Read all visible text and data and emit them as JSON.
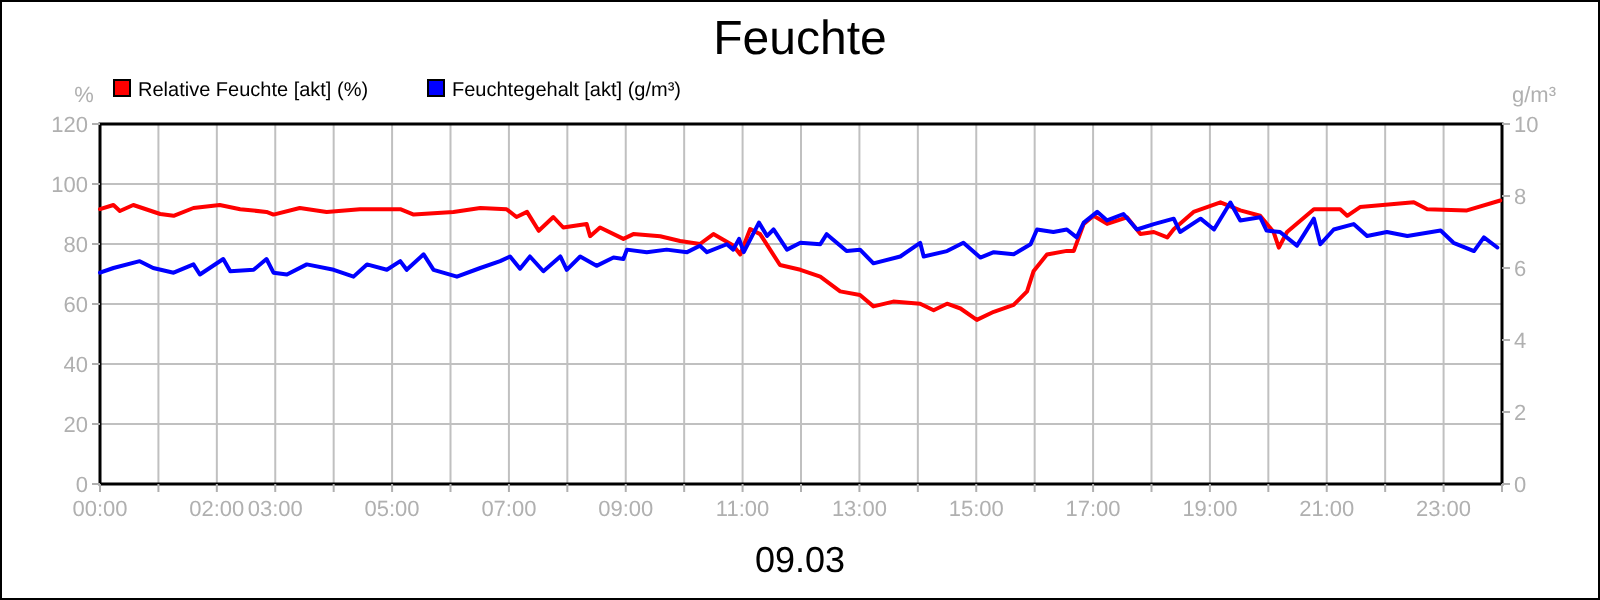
{
  "chart_data": {
    "type": "line",
    "title": "Feuchte",
    "xlabel": "09.03",
    "ylabel": "%",
    "y2label": "g/m³",
    "legend": "top left",
    "grid": true,
    "marker": "none",
    "line_style": "solid",
    "xlim": [
      0,
      24
    ],
    "ylim": [
      0,
      120
    ],
    "y2lim": [
      0,
      10
    ],
    "xticks": [
      {
        "value": 0,
        "label": "00:00"
      },
      {
        "value": 1,
        "label": null
      },
      {
        "value": 2,
        "label": "02:00"
      },
      {
        "value": 3,
        "label": "03:00"
      },
      {
        "value": 4,
        "label": null
      },
      {
        "value": 5,
        "label": "05:00"
      },
      {
        "value": 6,
        "label": null
      },
      {
        "value": 7,
        "label": "07:00"
      },
      {
        "value": 8,
        "label": null
      },
      {
        "value": 9,
        "label": "09:00"
      },
      {
        "value": 10,
        "label": null
      },
      {
        "value": 11,
        "label": "11:00"
      },
      {
        "value": 12,
        "label": null
      },
      {
        "value": 13,
        "label": "13:00"
      },
      {
        "value": 14,
        "label": null
      },
      {
        "value": 15,
        "label": "15:00"
      },
      {
        "value": 16,
        "label": null
      },
      {
        "value": 17,
        "label": "17:00"
      },
      {
        "value": 18,
        "label": null
      },
      {
        "value": 19,
        "label": "19:00"
      },
      {
        "value": 20,
        "label": null
      },
      {
        "value": 21,
        "label": "21:00"
      },
      {
        "value": 22,
        "label": null
      },
      {
        "value": 23,
        "label": "23:00"
      },
      {
        "value": 24,
        "label": null
      }
    ],
    "yticks": [
      0,
      20,
      40,
      60,
      80,
      100,
      120
    ],
    "y2ticks": [
      0,
      2,
      4,
      6,
      8,
      10
    ],
    "series": [
      {
        "name": "Relative Feuchte [akt] (%)",
        "color": "#ff0000",
        "x": [
          0,
          0.23,
          0.34,
          0.57,
          1.03,
          1.26,
          1.6,
          2.05,
          2.4,
          2.85,
          2.97,
          3.42,
          3.88,
          4.45,
          5.14,
          5.37,
          6.05,
          6.51,
          6.96,
          7.13,
          7.31,
          7.51,
          7.76,
          7.93,
          8.33,
          8.39,
          8.56,
          8.96,
          9.13,
          9.59,
          9.93,
          10.27,
          10.5,
          10.84,
          10.96,
          11.13,
          11.3,
          11.64,
          11.99,
          12.33,
          12.67,
          13.01,
          13.24,
          13.58,
          14.04,
          14.27,
          14.5,
          14.73,
          15.01,
          15.3,
          15.64,
          15.87,
          15.98,
          16.21,
          16.55,
          16.67,
          16.84,
          17.01,
          17.24,
          17.58,
          17.81,
          18.04,
          18.27,
          18.38,
          18.72,
          19.18,
          19.52,
          19.86,
          20.09,
          20.18,
          20.32,
          20.78,
          21.23,
          21.35,
          21.57,
          22.49,
          22.72,
          23.4,
          23.97
        ],
        "values": [
          91.6,
          93,
          91,
          93,
          90,
          89.4,
          92,
          93,
          91.6,
          90.7,
          89.8,
          92,
          90.7,
          91.6,
          91.6,
          89.8,
          90.7,
          92,
          91.6,
          89,
          90.7,
          84.4,
          89,
          85.5,
          86.7,
          82.6,
          85.5,
          81.7,
          83.3,
          82.6,
          81,
          80,
          83.3,
          79.5,
          76.5,
          85,
          83.3,
          73,
          71.4,
          69.1,
          64.2,
          63,
          59.2,
          60.8,
          60.1,
          57.9,
          60.1,
          58.5,
          54.7,
          57.4,
          59.7,
          64.2,
          70.9,
          76.5,
          77.7,
          77.7,
          86.7,
          89.4,
          86.7,
          88.9,
          83.3,
          84,
          82.2,
          84.9,
          90.7,
          93.9,
          91.2,
          89.4,
          84,
          78.8,
          84,
          91.6,
          91.6,
          89.4,
          92.3,
          93.9,
          91.6,
          91.2,
          94.5
        ]
      },
      {
        "name": "Feuchtegehalt [akt] (g/m³)",
        "color": "#0000ff",
        "axis": "y2",
        "x": [
          0,
          0.23,
          0.68,
          0.91,
          1.26,
          1.6,
          1.71,
          2.11,
          2.23,
          2.63,
          2.85,
          2.97,
          3.2,
          3.54,
          4.0,
          4.34,
          4.57,
          4.91,
          5.14,
          5.25,
          5.54,
          5.71,
          6.11,
          6.51,
          6.85,
          7.02,
          7.19,
          7.36,
          7.59,
          7.88,
          7.99,
          8.22,
          8.5,
          8.79,
          8.96,
          9.02,
          9.36,
          9.7,
          10.05,
          10.27,
          10.39,
          10.73,
          10.84,
          10.94,
          11.02,
          11.28,
          11.42,
          11.53,
          11.76,
          11.99,
          12.33,
          12.44,
          12.78,
          13.01,
          13.24,
          13.7,
          14.04,
          14.1,
          14.5,
          14.78,
          15.07,
          15.3,
          15.64,
          15.93,
          16.04,
          16.32,
          16.55,
          16.72,
          16.84,
          17.07,
          17.24,
          17.52,
          17.75,
          18.04,
          18.38,
          18.49,
          18.84,
          19.07,
          19.35,
          19.52,
          19.86,
          19.97,
          20.2,
          20.49,
          20.78,
          20.89,
          21.12,
          21.46,
          21.69,
          22.03,
          22.38,
          22.95,
          23.17,
          23.52,
          23.69,
          23.92
        ],
        "values": [
          5.87,
          6.0,
          6.19,
          6.0,
          5.87,
          6.1,
          5.82,
          6.25,
          5.91,
          5.95,
          6.25,
          5.87,
          5.82,
          6.1,
          5.95,
          5.76,
          6.1,
          5.95,
          6.19,
          5.95,
          6.38,
          5.95,
          5.76,
          6.0,
          6.19,
          6.32,
          5.98,
          6.32,
          5.91,
          6.32,
          5.95,
          6.32,
          6.06,
          6.29,
          6.25,
          6.51,
          6.44,
          6.51,
          6.44,
          6.62,
          6.44,
          6.66,
          6.51,
          6.81,
          6.44,
          7.26,
          6.89,
          7.07,
          6.51,
          6.7,
          6.66,
          6.94,
          6.47,
          6.51,
          6.13,
          6.32,
          6.7,
          6.32,
          6.47,
          6.7,
          6.29,
          6.44,
          6.38,
          6.66,
          7.07,
          7.0,
          7.07,
          6.85,
          7.26,
          7.56,
          7.32,
          7.5,
          7.07,
          7.22,
          7.37,
          7.0,
          7.37,
          7.07,
          7.82,
          7.32,
          7.41,
          7.04,
          7.0,
          6.62,
          7.37,
          6.66,
          7.07,
          7.22,
          6.89,
          7.0,
          6.89,
          7.04,
          6.7,
          6.47,
          6.85,
          6.57
        ]
      }
    ]
  }
}
